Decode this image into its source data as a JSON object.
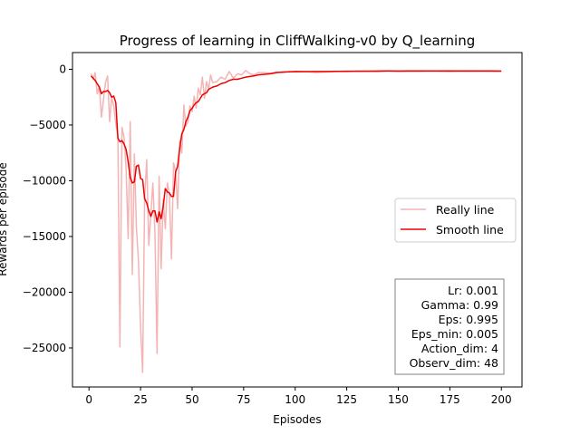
{
  "chart_data": {
    "type": "line",
    "title": "Progress of learning in CliffWalking-v0 by Q_learning",
    "xlabel": "Episodes",
    "ylabel": "Rewards per episode",
    "xlim": [
      -8,
      210
    ],
    "ylim": [
      -28500,
      1500
    ],
    "xticks": [
      0,
      25,
      50,
      75,
      100,
      125,
      150,
      175,
      200
    ],
    "yticks": [
      0,
      -5000,
      -10000,
      -15000,
      -20000,
      -25000
    ],
    "xtick_labels": [
      "0",
      "25",
      "50",
      "75",
      "100",
      "125",
      "150",
      "175",
      "200"
    ],
    "ytick_labels": [
      "0",
      "−5000",
      "−10000",
      "−15000",
      "−20000",
      "−25000"
    ],
    "grid": false,
    "legend": {
      "position": "center-right",
      "entries": [
        "Really line",
        "Smooth line"
      ]
    },
    "info_box": {
      "position": "bottom-right",
      "lines": [
        "Lr: 0.001",
        "Gamma: 0.99",
        "Eps: 0.995",
        "Eps_min: 0.005",
        "Action_dim: 4",
        "Observ_dim: 48"
      ]
    },
    "series": [
      {
        "name": "Really line",
        "color": "#f4b4b4",
        "x": [
          1,
          2,
          3,
          4,
          5,
          6,
          7,
          8,
          9,
          10,
          11,
          12,
          13,
          14,
          15,
          16,
          17,
          18,
          19,
          20,
          21,
          22,
          23,
          24,
          25,
          26,
          27,
          28,
          29,
          30,
          31,
          32,
          33,
          34,
          35,
          36,
          37,
          38,
          39,
          40,
          41,
          42,
          43,
          44,
          45,
          46,
          47,
          48,
          49,
          50,
          51,
          52,
          53,
          54,
          55,
          56,
          57,
          58,
          59,
          60,
          62,
          64,
          66,
          68,
          70,
          72,
          74,
          76,
          78,
          80,
          82,
          85,
          88,
          91,
          94,
          97,
          100,
          105,
          110,
          115,
          120,
          125,
          130,
          135,
          140,
          145,
          150,
          155,
          160,
          165,
          170,
          175,
          180,
          185,
          190,
          195,
          200
        ],
        "y": [
          -400,
          -900,
          -300,
          -2200,
          -1500,
          -4300,
          -2800,
          -1200,
          -600,
          -4700,
          -2500,
          -3300,
          -4900,
          -6000,
          -24900,
          -5200,
          -6100,
          -9000,
          -15200,
          -4700,
          -18400,
          -7600,
          -14200,
          -17200,
          -23100,
          -27200,
          -11600,
          -8100,
          -15800,
          -12900,
          -10200,
          -14700,
          -25500,
          -9600,
          -17900,
          -11700,
          -14300,
          -10200,
          -11200,
          -17000,
          -8400,
          -9200,
          -12500,
          -6400,
          -7500,
          -3200,
          -5100,
          -4700,
          -3300,
          -3800,
          -2400,
          -3500,
          -1700,
          -2300,
          -700,
          -2600,
          -1100,
          -1800,
          -500,
          -1200,
          -1100,
          -700,
          -900,
          -200,
          -800,
          -400,
          -500,
          -100,
          -400,
          -500,
          -300,
          -300,
          -350,
          -250,
          -300,
          -200,
          -250,
          -200,
          -300,
          -250,
          -200,
          -150,
          -200,
          -180,
          -220,
          -160,
          -200,
          -180,
          -200,
          -170,
          -190,
          -210,
          -180,
          -200,
          -190,
          -200,
          -200
        ]
      },
      {
        "name": "Smooth line",
        "color": "#ee0000",
        "x": [
          1,
          2,
          3,
          4,
          5,
          6,
          7,
          8,
          9,
          10,
          11,
          12,
          13,
          14,
          15,
          16,
          17,
          18,
          19,
          20,
          21,
          22,
          23,
          24,
          25,
          26,
          27,
          28,
          29,
          30,
          31,
          32,
          33,
          34,
          35,
          36,
          37,
          38,
          39,
          40,
          41,
          42,
          43,
          44,
          45,
          46,
          47,
          48,
          49,
          50,
          51,
          52,
          53,
          54,
          55,
          56,
          57,
          58,
          59,
          60,
          62,
          64,
          66,
          68,
          70,
          72,
          74,
          76,
          78,
          80,
          82,
          85,
          88,
          91,
          94,
          97,
          100,
          105,
          110,
          115,
          120,
          125,
          130,
          135,
          140,
          145,
          150,
          155,
          160,
          165,
          170,
          175,
          180,
          185,
          190,
          195,
          200
        ],
        "y": [
          -600,
          -800,
          -1000,
          -1300,
          -1600,
          -2200,
          -2000,
          -2000,
          -1900,
          -2100,
          -2500,
          -2400,
          -3000,
          -6200,
          -6500,
          -6400,
          -6700,
          -7200,
          -8300,
          -9700,
          -10200,
          -10100,
          -8700,
          -8600,
          -9800,
          -9900,
          -11600,
          -12000,
          -12700,
          -13200,
          -12700,
          -12700,
          -13700,
          -12800,
          -13400,
          -12300,
          -10700,
          -11000,
          -11100,
          -11400,
          -11400,
          -9200,
          -8700,
          -7100,
          -5800,
          -5400,
          -4700,
          -4300,
          -3700,
          -3500,
          -3200,
          -3000,
          -2900,
          -2600,
          -2300,
          -2200,
          -2100,
          -1800,
          -1700,
          -1600,
          -1500,
          -1300,
          -1200,
          -1000,
          -900,
          -900,
          -800,
          -700,
          -650,
          -600,
          -500,
          -450,
          -400,
          -300,
          -250,
          -230,
          -200,
          -210,
          -200,
          -200,
          -180,
          -180,
          -170,
          -170,
          -160,
          -150,
          -160,
          -150,
          -140,
          -140,
          -150,
          -150,
          -140,
          -140,
          -150,
          -150,
          -160
        ]
      }
    ]
  }
}
